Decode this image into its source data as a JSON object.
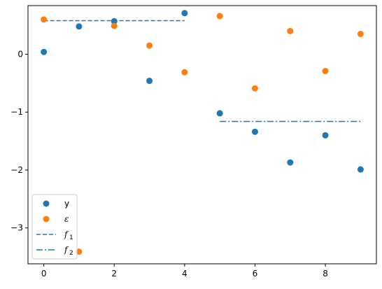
{
  "chart_data": {
    "type": "scatter",
    "title": "",
    "xlabel": "",
    "ylabel": "",
    "xlim": [
      -0.45,
      9.45
    ],
    "ylim": [
      -3.62,
      0.84
    ],
    "xticks": [
      0,
      2,
      4,
      6,
      8
    ],
    "yticks": [
      0,
      -1,
      -2,
      -3
    ],
    "xtick_labels": [
      "0",
      "2",
      "4",
      "6",
      "8"
    ],
    "ytick_labels": [
      "0",
      "−1",
      "−2",
      "−3"
    ],
    "grid": false,
    "legend_position": "lower-left",
    "series": [
      {
        "name": "y",
        "kind": "scatter",
        "color": "#1f77b4",
        "points": [
          [
            0,
            0.04
          ],
          [
            1,
            0.48
          ],
          [
            2,
            0.57
          ],
          [
            3,
            -0.46
          ],
          [
            4,
            0.71
          ],
          [
            5,
            -1.02
          ],
          [
            6,
            -1.34
          ],
          [
            7,
            -1.87
          ],
          [
            8,
            -1.4
          ],
          [
            9,
            -1.99
          ]
        ]
      },
      {
        "name": "ε",
        "kind": "scatter",
        "color": "#ff7f0e",
        "points": [
          [
            0,
            0.6
          ],
          [
            1,
            -3.41
          ],
          [
            2,
            0.49
          ],
          [
            3,
            0.15
          ],
          [
            4,
            -0.31
          ],
          [
            5,
            0.66
          ],
          [
            6,
            -0.59
          ],
          [
            7,
            0.4
          ],
          [
            8,
            -0.29
          ],
          [
            9,
            0.35
          ]
        ]
      },
      {
        "name": "f",
        "name_sub": "1",
        "kind": "line",
        "style": "dashed",
        "color": "#1f77b4",
        "points": [
          [
            0,
            0.58
          ],
          [
            4,
            0.58
          ]
        ]
      },
      {
        "name": "f",
        "name_sub": "2",
        "kind": "line",
        "style": "dashdot",
        "color": "#1f77b4",
        "points": [
          [
            5,
            -1.16
          ],
          [
            9,
            -1.16
          ]
        ]
      }
    ]
  }
}
